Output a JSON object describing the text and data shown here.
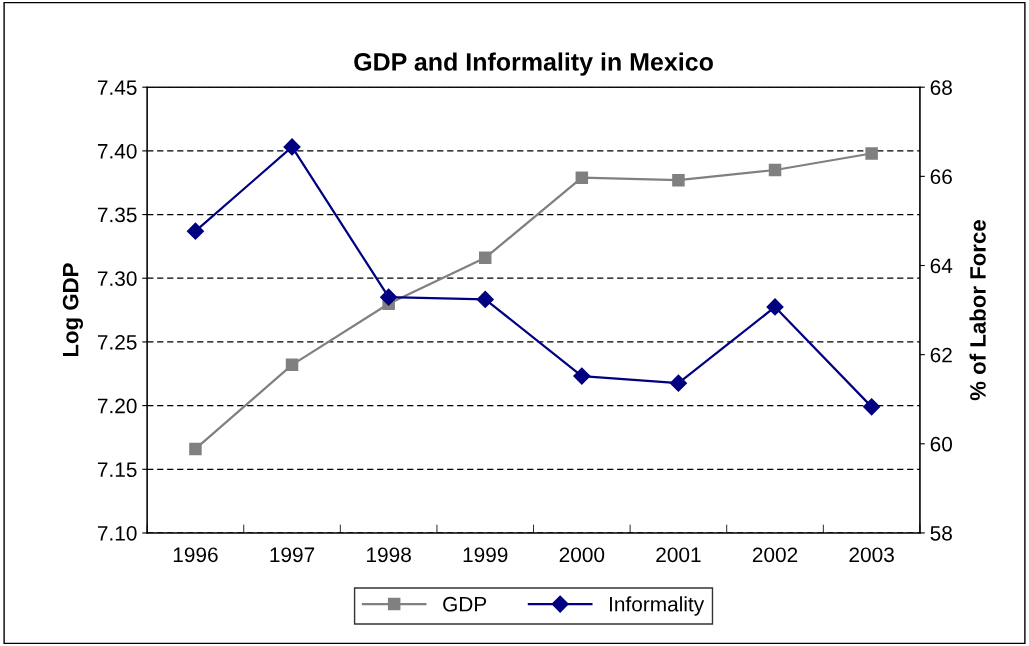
{
  "chart_data": {
    "type": "line",
    "title": "GDP and Informality in Mexico",
    "ylabel": "Log GDP",
    "y2label": "% of Labor Force",
    "categories": [
      "1996",
      "1997",
      "1998",
      "1999",
      "2000",
      "2001",
      "2002",
      "2003"
    ],
    "series": [
      {
        "name": "GDP",
        "color": "#808080",
        "marker": "square",
        "values": [
          7.166,
          7.232,
          7.28,
          7.316,
          7.379,
          7.377,
          7.385,
          7.398
        ]
      },
      {
        "name": "Informality",
        "color": "#000080",
        "marker": "diamond",
        "axis": "y2",
        "values": [
          64.77,
          66.66,
          63.29,
          63.24,
          61.52,
          61.36,
          63.07,
          60.83
        ]
      }
    ],
    "ylim": [
      7.1,
      7.45
    ],
    "yticks": [
      {
        "value": 7.1,
        "label": "7.10"
      },
      {
        "value": 7.15,
        "label": "7.15"
      },
      {
        "value": 7.2,
        "label": "7.20"
      },
      {
        "value": 7.25,
        "label": "7.25"
      },
      {
        "value": 7.3,
        "label": "7.30"
      },
      {
        "value": 7.35,
        "label": "7.35"
      },
      {
        "value": 7.4,
        "label": "7.40"
      },
      {
        "value": 7.45,
        "label": "7.45"
      }
    ],
    "y2lim": [
      58,
      68
    ],
    "y2ticks": [
      58,
      60,
      62,
      64,
      66,
      68
    ],
    "grid": "y",
    "legend": "bottom"
  }
}
